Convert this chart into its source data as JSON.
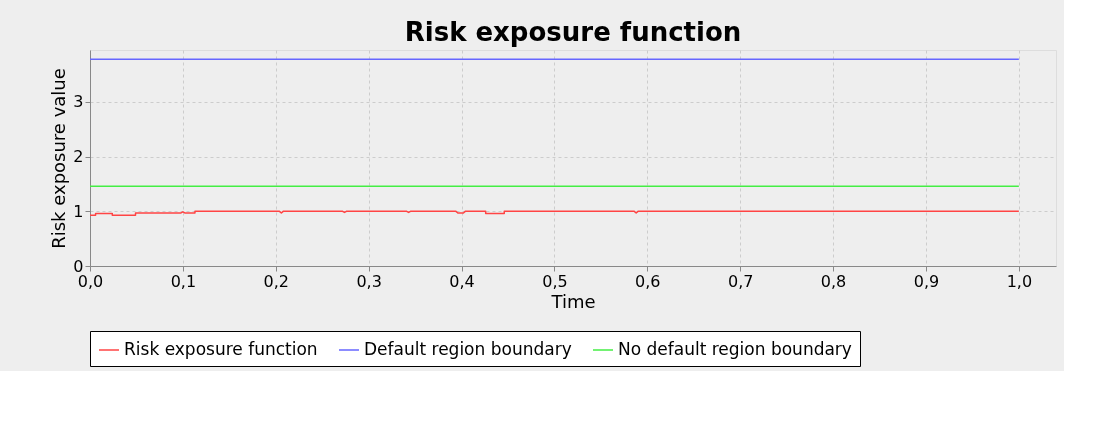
{
  "chart_data": {
    "type": "line",
    "title": "Risk exposure function",
    "xlabel": "Time",
    "ylabel": "Risk exposure value",
    "xlim": [
      0,
      1.04
    ],
    "xticks": [
      {
        "value": 0,
        "label": "0,0"
      },
      {
        "value": 0.1,
        "label": "0,1"
      },
      {
        "value": 0.2,
        "label": "0,2"
      },
      {
        "value": 0.3,
        "label": "0,3"
      },
      {
        "value": 0.4,
        "label": "0,4"
      },
      {
        "value": 0.5,
        "label": "0,5"
      },
      {
        "value": 0.6,
        "label": "0,6"
      },
      {
        "value": 0.7,
        "label": "0,7"
      },
      {
        "value": 0.8,
        "label": "0,8"
      },
      {
        "value": 0.9,
        "label": "0,9"
      },
      {
        "value": 1.0,
        "label": "1,0"
      }
    ],
    "ylim": [
      0,
      3.95
    ],
    "yticks": [
      0,
      1,
      2,
      3
    ],
    "grid": true,
    "legend": "bottom",
    "line_style": "solid",
    "marker": "none",
    "series": [
      {
        "name": "Risk exposure function",
        "color": "#ff4444",
        "x": [
          0,
          0.006,
          0.006,
          0.024,
          0.024,
          0.049,
          0.049,
          0.098,
          0.1,
          0.102,
          0.113,
          0.113,
          0.204,
          0.206,
          0.208,
          0.272,
          0.274,
          0.276,
          0.341,
          0.343,
          0.345,
          0.394,
          0.396,
          0.402,
          0.404,
          0.426,
          0.426,
          0.446,
          0.446,
          0.586,
          0.588,
          0.59,
          1.0
        ],
        "values": [
          0.93,
          0.93,
          0.96,
          0.96,
          0.93,
          0.93,
          0.97,
          0.97,
          0.99,
          0.97,
          0.97,
          1.0,
          1.0,
          0.97,
          1.0,
          1.0,
          0.98,
          1.0,
          1.0,
          0.98,
          1.0,
          1.0,
          0.97,
          0.97,
          1.0,
          1.0,
          0.96,
          0.96,
          1.0,
          1.0,
          0.97,
          1.0,
          1.0
        ]
      },
      {
        "name": "Default region boundary",
        "color": "#6666ff",
        "x": [
          0,
          1.0
        ],
        "values": [
          3.78,
          3.78
        ]
      },
      {
        "name": "No default region boundary",
        "color": "#44ee44",
        "x": [
          0,
          1.0
        ],
        "values": [
          1.46,
          1.46
        ]
      }
    ]
  }
}
